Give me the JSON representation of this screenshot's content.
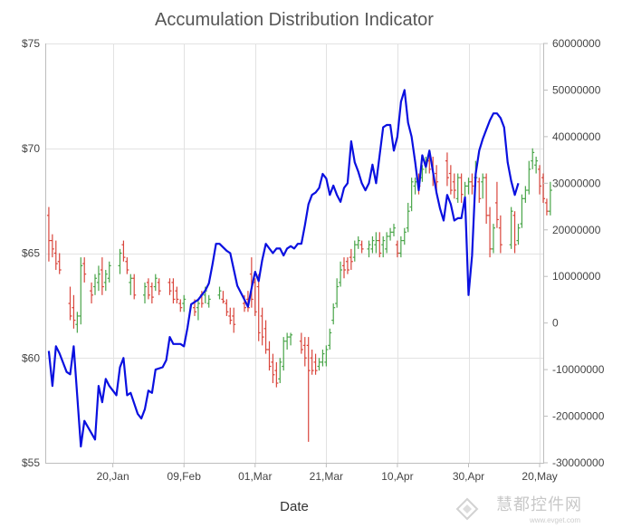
{
  "chart_data": {
    "type": "candlestick+line",
    "title": "Accumulation Distribution Indicator",
    "xlabel": "Date",
    "y_left": {
      "min": 55,
      "max": 75,
      "ticks": [
        "$55",
        "$60",
        "$65",
        "$70",
        "$75"
      ]
    },
    "y_right": {
      "min": -30000000,
      "max": 60000000,
      "ticks": [
        "-30000000",
        "-20000000",
        "-10000000",
        "0",
        "10000000",
        "20000000",
        "30000000",
        "40000000",
        "50000000",
        "60000000"
      ]
    },
    "x_ticks": [
      "20,Jan",
      "09,Feb",
      "01,Mar",
      "21,Mar",
      "10,Apr",
      "30,Apr",
      "20,May"
    ],
    "x_days_range": [
      0,
      140
    ],
    "x_tick_days": [
      19,
      39,
      59,
      79,
      99,
      119,
      139
    ],
    "grid": true,
    "colors": {
      "up": "#49a549",
      "down": "#d9453b",
      "line": "#0a10e0"
    },
    "ohlc": [
      [
        1,
        66.8,
        67.2,
        64.6,
        65.6
      ],
      [
        2,
        65.6,
        65.9,
        64.8,
        65.2
      ],
      [
        3,
        65.0,
        65.6,
        64.2,
        64.5
      ],
      [
        4,
        64.6,
        65.0,
        64.0,
        64.2
      ],
      [
        7,
        62.6,
        63.4,
        61.8,
        62.0
      ],
      [
        8,
        62.4,
        63.0,
        61.4,
        61.8
      ],
      [
        9,
        61.6,
        62.2,
        61.2,
        62.0
      ],
      [
        10,
        62.0,
        64.8,
        61.6,
        64.4
      ],
      [
        11,
        64.5,
        64.8,
        63.6,
        64.0
      ],
      [
        13,
        63.2,
        63.6,
        62.6,
        63.0
      ],
      [
        14,
        63.4,
        64.0,
        63.0,
        63.8
      ],
      [
        15,
        63.6,
        64.4,
        63.2,
        64.0
      ],
      [
        16,
        64.2,
        64.8,
        63.0,
        63.4
      ],
      [
        17,
        63.6,
        64.2,
        63.2,
        64.0
      ],
      [
        18,
        63.8,
        64.6,
        63.6,
        64.4
      ],
      [
        21,
        64.4,
        65.2,
        64.0,
        65.0
      ],
      [
        22,
        65.4,
        65.6,
        64.6,
        64.8
      ],
      [
        23,
        64.6,
        64.8,
        64.0,
        64.2
      ],
      [
        24,
        63.6,
        64.0,
        63.0,
        63.8
      ],
      [
        25,
        63.8,
        64.0,
        62.8,
        63.0
      ],
      [
        28,
        63.0,
        63.6,
        62.6,
        63.4
      ],
      [
        29,
        63.6,
        63.8,
        62.8,
        63.0
      ],
      [
        30,
        63.4,
        63.6,
        62.6,
        62.9
      ],
      [
        31,
        63.4,
        64.0,
        63.2,
        63.8
      ],
      [
        32,
        63.6,
        63.8,
        63.0,
        63.2
      ],
      [
        35,
        63.6,
        63.8,
        63.0,
        63.2
      ],
      [
        36,
        63.6,
        63.8,
        62.6,
        62.8
      ],
      [
        37,
        63.2,
        63.4,
        62.6,
        62.8
      ],
      [
        38,
        62.6,
        62.8,
        62.2,
        62.4
      ],
      [
        39,
        62.6,
        63.0,
        62.2,
        62.8
      ],
      [
        42,
        62.4,
        62.8,
        62.0,
        62.2
      ],
      [
        43,
        62.4,
        62.8,
        61.8,
        62.6
      ],
      [
        44,
        63.0,
        63.2,
        62.4,
        62.6
      ],
      [
        45,
        63.0,
        63.4,
        62.6,
        63.2
      ],
      [
        46,
        62.6,
        63.0,
        62.4,
        62.8
      ],
      [
        49,
        63.0,
        63.4,
        62.8,
        63.2
      ],
      [
        50,
        62.8,
        63.2,
        62.6,
        62.7
      ],
      [
        51,
        62.6,
        62.8,
        62.0,
        62.2
      ],
      [
        52,
        62.0,
        62.4,
        61.6,
        61.8
      ],
      [
        53,
        62.0,
        62.4,
        61.2,
        61.6
      ],
      [
        56,
        62.6,
        63.0,
        62.2,
        62.4
      ],
      [
        57,
        62.8,
        63.2,
        62.2,
        62.4
      ],
      [
        58,
        64.0,
        64.8,
        62.4,
        62.8
      ],
      [
        59,
        63.6,
        63.8,
        62.0,
        62.2
      ],
      [
        60,
        63.4,
        64.0,
        60.8,
        61.2
      ],
      [
        61,
        62.0,
        62.4,
        60.6,
        61.0
      ],
      [
        62,
        61.4,
        61.8,
        60.2,
        60.4
      ],
      [
        63,
        60.4,
        60.8,
        59.4,
        59.6
      ],
      [
        64,
        59.8,
        60.2,
        58.8,
        59.2
      ],
      [
        65,
        59.4,
        59.8,
        58.6,
        58.8
      ],
      [
        66,
        59.0,
        60.0,
        58.8,
        59.8
      ],
      [
        67,
        59.6,
        61.0,
        59.4,
        60.8
      ],
      [
        68,
        60.8,
        61.2,
        60.4,
        61.0
      ],
      [
        69,
        61.0,
        61.2,
        60.6,
        61.1
      ],
      [
        72,
        60.8,
        61.2,
        60.2,
        60.4
      ],
      [
        73,
        60.6,
        61.0,
        59.6,
        60.0
      ],
      [
        74,
        60.6,
        61.0,
        56.0,
        59.4
      ],
      [
        75,
        60.0,
        60.4,
        59.2,
        59.4
      ],
      [
        76,
        59.8,
        60.2,
        59.2,
        59.4
      ],
      [
        77,
        59.6,
        60.0,
        59.4,
        59.8
      ],
      [
        78,
        59.8,
        60.4,
        59.6,
        60.2
      ],
      [
        79,
        59.8,
        60.6,
        59.6,
        60.4
      ],
      [
        80,
        60.6,
        61.4,
        60.4,
        61.2
      ],
      [
        81,
        61.8,
        62.6,
        61.6,
        62.4
      ],
      [
        82,
        62.6,
        63.8,
        62.4,
        63.4
      ],
      [
        83,
        63.6,
        64.6,
        63.4,
        64.2
      ],
      [
        84,
        64.4,
        64.8,
        63.8,
        64.2
      ],
      [
        85,
        64.6,
        64.8,
        64.0,
        64.2
      ],
      [
        86,
        64.8,
        65.2,
        64.2,
        64.6
      ],
      [
        87,
        64.8,
        65.6,
        64.6,
        65.4
      ],
      [
        88,
        65.4,
        65.8,
        65.2,
        65.6
      ],
      [
        89,
        65.4,
        65.6,
        65.0,
        65.2
      ],
      [
        91,
        65.2,
        65.6,
        64.8,
        65.4
      ],
      [
        92,
        65.2,
        65.8,
        65.0,
        65.6
      ],
      [
        93,
        65.4,
        66.0,
        65.0,
        65.6
      ],
      [
        94,
        65.6,
        66.0,
        64.8,
        65.0
      ],
      [
        95,
        65.4,
        65.8,
        64.8,
        65.6
      ],
      [
        96,
        65.2,
        66.0,
        65.0,
        65.8
      ],
      [
        97,
        65.8,
        66.2,
        65.6,
        66.0
      ],
      [
        98,
        66.0,
        66.4,
        65.8,
        66.2
      ],
      [
        99,
        65.4,
        65.6,
        64.8,
        65.0
      ],
      [
        100,
        65.0,
        65.8,
        64.8,
        65.6
      ],
      [
        101,
        65.6,
        66.2,
        65.4,
        66.0
      ],
      [
        102,
        66.2,
        67.4,
        66.0,
        67.0
      ],
      [
        103,
        67.2,
        68.6,
        67.0,
        68.4
      ],
      [
        104,
        68.2,
        68.6,
        67.8,
        68.4
      ],
      [
        105,
        68.4,
        68.8,
        67.8,
        68.2
      ],
      [
        106,
        68.6,
        69.2,
        68.4,
        69.0
      ],
      [
        107,
        69.2,
        69.6,
        68.8,
        69.4
      ],
      [
        108,
        69.4,
        69.8,
        68.8,
        69.0
      ],
      [
        109,
        69.2,
        69.6,
        68.2,
        68.6
      ],
      [
        110,
        68.8,
        69.2,
        68.0,
        68.4
      ],
      [
        113,
        69.4,
        69.8,
        68.2,
        68.6
      ],
      [
        114,
        68.8,
        69.2,
        67.8,
        68.0
      ],
      [
        115,
        68.4,
        68.8,
        67.6,
        68.0
      ],
      [
        116,
        67.6,
        68.8,
        67.4,
        68.6
      ],
      [
        117,
        68.6,
        68.8,
        67.4,
        67.8
      ],
      [
        118,
        67.4,
        68.4,
        67.0,
        68.2
      ],
      [
        119,
        68.2,
        68.6,
        67.8,
        68.4
      ],
      [
        120,
        68.4,
        68.8,
        67.8,
        68.2
      ],
      [
        121,
        68.6,
        69.4,
        68.2,
        68.6
      ],
      [
        122,
        68.4,
        68.6,
        67.4,
        67.6
      ],
      [
        123,
        68.4,
        68.8,
        67.6,
        68.6
      ],
      [
        124,
        68.6,
        68.8,
        66.4,
        66.8
      ],
      [
        125,
        66.8,
        67.2,
        64.8,
        65.2
      ],
      [
        126,
        65.2,
        66.4,
        65.0,
        66.2
      ],
      [
        127,
        67.4,
        68.4,
        66.2,
        66.6
      ],
      [
        128,
        66.2,
        66.8,
        65.0,
        65.4
      ],
      [
        131,
        65.4,
        67.2,
        65.2,
        67.0
      ],
      [
        132,
        66.8,
        67.0,
        65.0,
        65.4
      ],
      [
        133,
        65.6,
        66.4,
        65.4,
        66.2
      ],
      [
        134,
        66.4,
        67.8,
        66.2,
        67.6
      ],
      [
        135,
        67.6,
        68.2,
        67.4,
        68.0
      ],
      [
        136,
        68.0,
        69.4,
        67.8,
        69.0
      ],
      [
        137,
        69.4,
        70.0,
        69.0,
        69.8
      ],
      [
        138,
        69.2,
        69.6,
        68.8,
        69.4
      ],
      [
        139,
        69.0,
        69.2,
        67.8,
        68.2
      ],
      [
        140,
        68.6,
        68.8,
        67.4,
        67.6
      ],
      [
        141,
        67.4,
        67.6,
        66.8,
        67.0
      ],
      [
        142,
        67.0,
        68.4,
        66.8,
        68.0
      ]
    ],
    "ad_line": [
      [
        1,
        -6000000
      ],
      [
        2,
        -13500000
      ],
      [
        3,
        -5000000
      ],
      [
        4,
        -6500000
      ],
      [
        6,
        -10500000
      ],
      [
        7,
        -11000000
      ],
      [
        8,
        -5000000
      ],
      [
        10,
        -26500000
      ],
      [
        11,
        -21000000
      ],
      [
        14,
        -25000000
      ],
      [
        15,
        -13500000
      ],
      [
        16,
        -17000000
      ],
      [
        17,
        -12000000
      ],
      [
        18,
        -13500000
      ],
      [
        20,
        -15500000
      ],
      [
        21,
        -9500000
      ],
      [
        22,
        -7500000
      ],
      [
        23,
        -15500000
      ],
      [
        24,
        -15000000
      ],
      [
        26,
        -19500000
      ],
      [
        27,
        -20500000
      ],
      [
        28,
        -18500000
      ],
      [
        29,
        -14500000
      ],
      [
        30,
        -15000000
      ],
      [
        31,
        -10000000
      ],
      [
        33,
        -9500000
      ],
      [
        34,
        -8000000
      ],
      [
        35,
        -3000000
      ],
      [
        36,
        -4500000
      ],
      [
        38,
        -4500000
      ],
      [
        39,
        -5000000
      ],
      [
        40,
        -1000000
      ],
      [
        41,
        4000000
      ],
      [
        43,
        5000000
      ],
      [
        45,
        7000000
      ],
      [
        46,
        8500000
      ],
      [
        47,
        12500000
      ],
      [
        48,
        17000000
      ],
      [
        49,
        17000000
      ],
      [
        51,
        15500000
      ],
      [
        52,
        15000000
      ],
      [
        53,
        11500000
      ],
      [
        54,
        8000000
      ],
      [
        56,
        5000000
      ],
      [
        57,
        3500000
      ],
      [
        58,
        7500000
      ],
      [
        59,
        11000000
      ],
      [
        60,
        9000000
      ],
      [
        61,
        13500000
      ],
      [
        62,
        17000000
      ],
      [
        63,
        16000000
      ],
      [
        64,
        15000000
      ],
      [
        65,
        16000000
      ],
      [
        66,
        16000000
      ],
      [
        67,
        14500000
      ],
      [
        68,
        16000000
      ],
      [
        69,
        16500000
      ],
      [
        70,
        16000000
      ],
      [
        71,
        17000000
      ],
      [
        72,
        17000000
      ],
      [
        73,
        21000000
      ],
      [
        74,
        25500000
      ],
      [
        75,
        27500000
      ],
      [
        76,
        28000000
      ],
      [
        77,
        29000000
      ],
      [
        78,
        32000000
      ],
      [
        79,
        31000000
      ],
      [
        80,
        27500000
      ],
      [
        81,
        29500000
      ],
      [
        82,
        27500000
      ],
      [
        83,
        26000000
      ],
      [
        84,
        29000000
      ],
      [
        85,
        30000000
      ],
      [
        86,
        39000000
      ],
      [
        87,
        34500000
      ],
      [
        88,
        32500000
      ],
      [
        89,
        30000000
      ],
      [
        90,
        28500000
      ],
      [
        91,
        30000000
      ],
      [
        92,
        34000000
      ],
      [
        93,
        30000000
      ],
      [
        94,
        36000000
      ],
      [
        95,
        42000000
      ],
      [
        96,
        42500000
      ],
      [
        97,
        42500000
      ],
      [
        98,
        37000000
      ],
      [
        99,
        40000000
      ],
      [
        100,
        47500000
      ],
      [
        101,
        50000000
      ],
      [
        102,
        43000000
      ],
      [
        103,
        40000000
      ],
      [
        104,
        34500000
      ],
      [
        105,
        28500000
      ],
      [
        106,
        36000000
      ],
      [
        107,
        33500000
      ],
      [
        108,
        37000000
      ],
      [
        109,
        32500000
      ],
      [
        110,
        28000000
      ],
      [
        111,
        24500000
      ],
      [
        112,
        22000000
      ],
      [
        113,
        27500000
      ],
      [
        114,
        25500000
      ],
      [
        115,
        22000000
      ],
      [
        116,
        22500000
      ],
      [
        117,
        22500000
      ],
      [
        118,
        27000000
      ],
      [
        119,
        6000000
      ],
      [
        120,
        14500000
      ],
      [
        121,
        32000000
      ],
      [
        122,
        37000000
      ],
      [
        123,
        39500000
      ],
      [
        124,
        41500000
      ],
      [
        125,
        43500000
      ],
      [
        126,
        45000000
      ],
      [
        127,
        45000000
      ],
      [
        128,
        44000000
      ],
      [
        129,
        42000000
      ],
      [
        130,
        34500000
      ],
      [
        131,
        30500000
      ],
      [
        132,
        27500000
      ],
      [
        133,
        30000000
      ]
    ]
  },
  "watermark": {
    "text": "慧都控件网",
    "sub": "www.evget.com"
  }
}
